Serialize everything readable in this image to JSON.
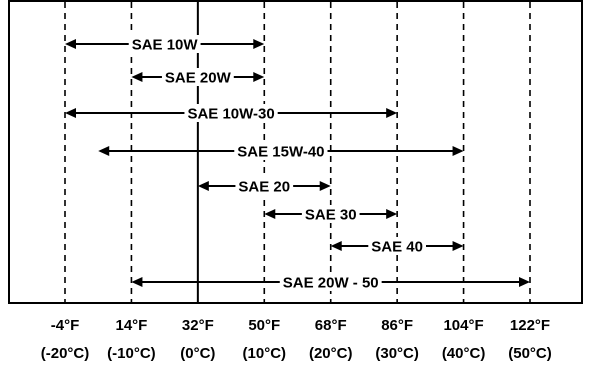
{
  "chart_data": {
    "type": "range",
    "temperature_scale": [
      {
        "f": "-4°F",
        "c": "(-20°C)",
        "value_f": -4
      },
      {
        "f": "14°F",
        "c": "(-10°C)",
        "value_f": 14
      },
      {
        "f": "32°F",
        "c": "(0°C)",
        "value_f": 32
      },
      {
        "f": "50°F",
        "c": "(10°C)",
        "value_f": 50
      },
      {
        "f": "68°F",
        "c": "(20°C)",
        "value_f": 68
      },
      {
        "f": "86°F",
        "c": "(30°C)",
        "value_f": 86
      },
      {
        "f": "104°F",
        "c": "(40°C)",
        "value_f": 104
      },
      {
        "f": "122°F",
        "c": "(50°C)",
        "value_f": 122
      }
    ],
    "x_range_f": [
      -4,
      122
    ],
    "zero_line_f": 32,
    "ranges": [
      {
        "label": "SAE 10W",
        "from_f": -4,
        "to_f": 50
      },
      {
        "label": "SAE 20W",
        "from_f": 14,
        "to_f": 50
      },
      {
        "label": "SAE 10W-30",
        "from_f": -4,
        "to_f": 86
      },
      {
        "label": "SAE 15W-40",
        "from_f": 5,
        "to_f": 104
      },
      {
        "label": "SAE 20",
        "from_f": 32,
        "to_f": 68
      },
      {
        "label": "SAE 30",
        "from_f": 50,
        "to_f": 86
      },
      {
        "label": "SAE 40",
        "from_f": 68,
        "to_f": 104
      },
      {
        "label": "SAE 20W - 50",
        "from_f": 14,
        "to_f": 122
      }
    ]
  }
}
